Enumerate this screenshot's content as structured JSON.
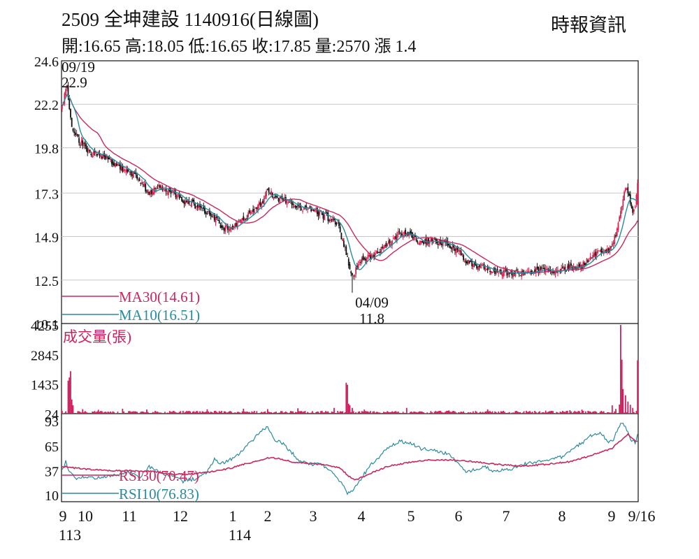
{
  "header": {
    "title": "2509  全坤建設 1140916(日線圖)",
    "source": "時報資訊",
    "ohlc_line": "開:16.65 高:18.05 低:16.65 收:17.85 量:2570 漲 1.4"
  },
  "colors": {
    "up": "#d8224d",
    "down": "#111111",
    "ma30": "#c8285c",
    "ma10": "#2a8aa0",
    "volume": "#d01f5e",
    "rsi30": "#c8285c",
    "rsi10": "#2a8aa0",
    "grid": "#c8c8c8",
    "frame": "#111111"
  },
  "chart_data": [
    {
      "type": "candlestick",
      "panel": "price",
      "ylim": [
        10.1,
        24.6
      ],
      "y_ticks": [
        "24.6",
        "22.2",
        "19.8",
        "17.3",
        "14.9",
        "12.5",
        "10.1"
      ],
      "annotations": [
        {
          "label": "09/19",
          "value": "22.9"
        },
        {
          "label": "04/09",
          "value": "11.8"
        }
      ],
      "last_bar": {
        "open": 16.65,
        "high": 18.05,
        "low": 16.65,
        "close": 17.85,
        "volume": 2570,
        "change": 1.4
      },
      "anchors": [
        [
          0,
          22.3
        ],
        [
          2,
          22.7
        ],
        [
          4,
          23.2
        ],
        [
          8,
          21.0
        ],
        [
          14,
          20.2
        ],
        [
          22,
          19.6
        ],
        [
          35,
          19.3
        ],
        [
          50,
          18.6
        ],
        [
          60,
          18.3
        ],
        [
          72,
          17.3
        ],
        [
          80,
          17.6
        ],
        [
          90,
          17.4
        ],
        [
          100,
          16.9
        ],
        [
          108,
          16.7
        ],
        [
          120,
          16.2
        ],
        [
          128,
          15.8
        ],
        [
          133,
          15.4
        ],
        [
          140,
          15.4
        ],
        [
          150,
          15.9
        ],
        [
          158,
          16.2
        ],
        [
          166,
          16.9
        ],
        [
          170,
          17.6
        ],
        [
          176,
          16.9
        ],
        [
          185,
          16.9
        ],
        [
          195,
          16.5
        ],
        [
          208,
          16.3
        ],
        [
          218,
          16.0
        ],
        [
          228,
          15.6
        ],
        [
          234,
          14.2
        ],
        [
          240,
          12.7
        ],
        [
          244,
          13.2
        ],
        [
          248,
          13.6
        ],
        [
          255,
          13.8
        ],
        [
          262,
          14.1
        ],
        [
          270,
          14.5
        ],
        [
          278,
          15.0
        ],
        [
          286,
          15.0
        ],
        [
          294,
          14.7
        ],
        [
          302,
          14.6
        ],
        [
          310,
          14.6
        ],
        [
          318,
          14.5
        ],
        [
          326,
          14.2
        ],
        [
          334,
          13.6
        ],
        [
          342,
          13.3
        ],
        [
          350,
          13.2
        ],
        [
          360,
          12.9
        ],
        [
          372,
          12.9
        ],
        [
          384,
          12.9
        ],
        [
          394,
          13.0
        ],
        [
          404,
          13.0
        ],
        [
          414,
          13.1
        ],
        [
          422,
          13.2
        ],
        [
          430,
          13.3
        ],
        [
          438,
          13.8
        ],
        [
          444,
          14.2
        ],
        [
          450,
          14.0
        ],
        [
          455,
          14.4
        ],
        [
          460,
          15.5
        ],
        [
          464,
          17.0
        ],
        [
          466,
          17.6
        ],
        [
          468,
          17.3
        ],
        [
          470,
          16.8
        ],
        [
          472,
          16.3
        ],
        [
          474,
          16.45
        ],
        [
          476,
          17.85
        ]
      ],
      "ma30": {
        "label": "MA30(14.61)",
        "last": 14.61
      },
      "ma10": {
        "label": "MA10(16.51)",
        "last": 16.51
      }
    },
    {
      "type": "bar",
      "panel": "volume",
      "title": "成交量(張)",
      "y_ticks": [
        "4255",
        "2845",
        "1435",
        "24"
      ],
      "ylim": [
        24,
        4255
      ],
      "spikes": [
        [
          5,
          1600
        ],
        [
          6,
          1750
        ],
        [
          7,
          2050
        ],
        [
          8,
          700
        ],
        [
          9,
          420
        ],
        [
          17,
          240
        ],
        [
          30,
          210
        ],
        [
          50,
          260
        ],
        [
          70,
          220
        ],
        [
          100,
          160
        ],
        [
          120,
          230
        ],
        [
          130,
          150
        ],
        [
          150,
          260
        ],
        [
          170,
          240
        ],
        [
          195,
          280
        ],
        [
          225,
          300
        ],
        [
          235,
          1500
        ],
        [
          236,
          1400
        ],
        [
          237,
          500
        ],
        [
          238,
          420
        ],
        [
          240,
          300
        ],
        [
          250,
          220
        ],
        [
          258,
          140
        ],
        [
          285,
          300
        ],
        [
          320,
          180
        ],
        [
          352,
          230
        ],
        [
          400,
          170
        ],
        [
          420,
          190
        ],
        [
          430,
          220
        ],
        [
          455,
          420
        ],
        [
          458,
          250
        ],
        [
          461,
          460
        ],
        [
          462,
          4255
        ],
        [
          463,
          2600
        ],
        [
          464,
          1200
        ],
        [
          466,
          900
        ],
        [
          468,
          600
        ],
        [
          470,
          450
        ],
        [
          472,
          300
        ],
        [
          476,
          2570
        ]
      ]
    },
    {
      "type": "line",
      "panel": "rsi",
      "y_ticks": [
        "93",
        "65",
        "37",
        "10"
      ],
      "ylim": [
        10,
        93
      ],
      "series": [
        {
          "name": "RSI30(70.47)",
          "last": 70.47,
          "anchors": [
            [
              0,
              42
            ],
            [
              10,
              40
            ],
            [
              25,
              38
            ],
            [
              40,
              37
            ],
            [
              55,
              37
            ],
            [
              75,
              36
            ],
            [
              90,
              33
            ],
            [
              105,
              33
            ],
            [
              125,
              36
            ],
            [
              140,
              40
            ],
            [
              150,
              44
            ],
            [
              160,
              47
            ],
            [
              170,
              51
            ],
            [
              178,
              51
            ],
            [
              190,
              47
            ],
            [
              205,
              45
            ],
            [
              220,
              43
            ],
            [
              230,
              40
            ],
            [
              236,
              32
            ],
            [
              242,
              26
            ],
            [
              255,
              34
            ],
            [
              270,
              42
            ],
            [
              290,
              47
            ],
            [
              305,
              49
            ],
            [
              320,
              49
            ],
            [
              340,
              47
            ],
            [
              360,
              44
            ],
            [
              380,
              42
            ],
            [
              400,
              44
            ],
            [
              420,
              47
            ],
            [
              440,
              55
            ],
            [
              455,
              62
            ],
            [
              462,
              71
            ],
            [
              468,
              78
            ],
            [
              474,
              70
            ],
            [
              476,
              70.47
            ]
          ]
        },
        {
          "name": "RSI10(76.83)",
          "last": 76.83,
          "anchors": [
            [
              0,
              37
            ],
            [
              3,
              48
            ],
            [
              6,
              35
            ],
            [
              12,
              28
            ],
            [
              20,
              30
            ],
            [
              30,
              29
            ],
            [
              40,
              31
            ],
            [
              48,
              33
            ],
            [
              56,
              36
            ],
            [
              64,
              28
            ],
            [
              72,
              42
            ],
            [
              80,
              35
            ],
            [
              90,
              32
            ],
            [
              100,
              25
            ],
            [
              110,
              28
            ],
            [
              120,
              35
            ],
            [
              126,
              50
            ],
            [
              132,
              45
            ],
            [
              140,
              50
            ],
            [
              147,
              57
            ],
            [
              152,
              63
            ],
            [
              160,
              75
            ],
            [
              165,
              82
            ],
            [
              170,
              87
            ],
            [
              176,
              72
            ],
            [
              182,
              68
            ],
            [
              188,
              60
            ],
            [
              196,
              48
            ],
            [
              204,
              44
            ],
            [
              212,
              45
            ],
            [
              220,
              40
            ],
            [
              226,
              32
            ],
            [
              232,
              22
            ],
            [
              236,
              12
            ],
            [
              240,
              15
            ],
            [
              248,
              30
            ],
            [
              256,
              44
            ],
            [
              264,
              55
            ],
            [
              272,
              65
            ],
            [
              280,
              70
            ],
            [
              288,
              68
            ],
            [
              296,
              62
            ],
            [
              304,
              60
            ],
            [
              312,
              58
            ],
            [
              320,
              55
            ],
            [
              328,
              44
            ],
            [
              334,
              36
            ],
            [
              342,
              38
            ],
            [
              350,
              42
            ],
            [
              358,
              35
            ],
            [
              366,
              38
            ],
            [
              374,
              40
            ],
            [
              382,
              44
            ],
            [
              390,
              46
            ],
            [
              398,
              48
            ],
            [
              406,
              50
            ],
            [
              414,
              53
            ],
            [
              420,
              58
            ],
            [
              426,
              65
            ],
            [
              432,
              70
            ],
            [
              438,
              77
            ],
            [
              444,
              80
            ],
            [
              448,
              75
            ],
            [
              452,
              68
            ],
            [
              456,
              72
            ],
            [
              460,
              84
            ],
            [
              463,
              91
            ],
            [
              466,
              86
            ],
            [
              470,
              72
            ],
            [
              474,
              68
            ],
            [
              476,
              76.83
            ]
          ]
        }
      ]
    }
  ],
  "x_axis": {
    "ticks": [
      "9",
      "10",
      "11",
      "12",
      "1",
      "2",
      "3",
      "4",
      "5",
      "6",
      "7",
      "8",
      "9",
      "9/16"
    ],
    "year_labels": [
      "113",
      "114"
    ]
  }
}
